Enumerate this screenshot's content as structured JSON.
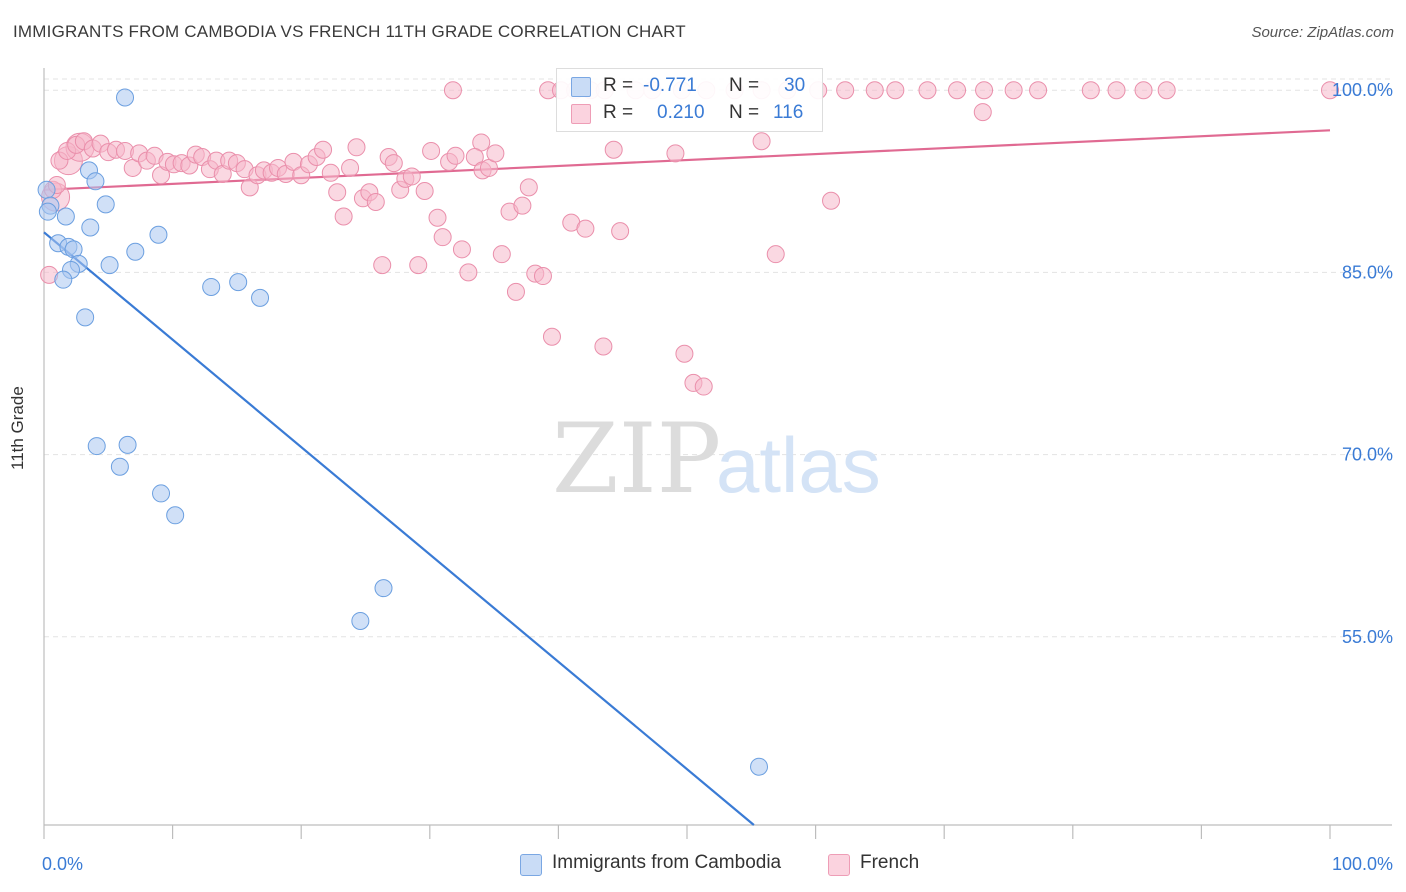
{
  "title": "IMMIGRANTS FROM CAMBODIA VS FRENCH 11TH GRADE CORRELATION CHART",
  "source": "Source: ZipAtlas.com",
  "watermark": {
    "zip": "ZIP",
    "atlas": "atlas"
  },
  "legend": {
    "r_label": "R =",
    "n_label": "N =",
    "rows": [
      {
        "r": "-0.771",
        "n": "30",
        "color": "#a9c7f0"
      },
      {
        "r": "0.210",
        "n": "116",
        "color": "#f6b8cb"
      }
    ]
  },
  "chart_data": {
    "type": "scatter",
    "title": "IMMIGRANTS FROM CAMBODIA VS FRENCH 11TH GRADE CORRELATION CHART",
    "ylabel": "11th Grade",
    "xlabel": "",
    "xlim": [
      0,
      100
    ],
    "ylim": [
      39.5,
      101.5
    ],
    "x_tick_labels": [
      "0.0%",
      "100.0%"
    ],
    "y_ticks": [
      {
        "value": 100,
        "label": "100.0%"
      },
      {
        "value": 85,
        "label": "85.0%"
      },
      {
        "value": 70,
        "label": "70.0%"
      },
      {
        "value": 55,
        "label": "55.0%"
      }
    ],
    "grid": "horizontal dashed",
    "series": [
      {
        "name": "Immigrants from Cambodia",
        "color": "#a9c7f0",
        "stroke": "#6b9fe0",
        "trend": {
          "x": [
            0,
            55.2
          ],
          "y": [
            88.3,
            39.5
          ],
          "color": "#3a7bd5"
        },
        "points": [
          [
            6.3,
            99.4
          ],
          [
            0.2,
            91.8
          ],
          [
            0.5,
            90.5
          ],
          [
            0.3,
            90.0
          ],
          [
            1.7,
            89.6
          ],
          [
            3.5,
            93.4
          ],
          [
            4.0,
            92.5
          ],
          [
            4.8,
            90.6
          ],
          [
            3.6,
            88.7
          ],
          [
            8.9,
            88.1
          ],
          [
            1.1,
            87.4
          ],
          [
            1.9,
            87.1
          ],
          [
            2.3,
            86.9
          ],
          [
            7.1,
            86.7
          ],
          [
            2.7,
            85.7
          ],
          [
            5.1,
            85.6
          ],
          [
            2.1,
            85.2
          ],
          [
            1.5,
            84.4
          ],
          [
            13.0,
            83.8
          ],
          [
            15.1,
            84.2
          ],
          [
            16.8,
            82.9
          ],
          [
            3.2,
            81.3
          ],
          [
            4.1,
            70.7
          ],
          [
            6.5,
            70.8
          ],
          [
            5.9,
            69.0
          ],
          [
            9.1,
            66.8
          ],
          [
            10.2,
            65.0
          ],
          [
            26.4,
            59.0
          ],
          [
            24.6,
            56.3
          ],
          [
            55.6,
            44.3
          ]
        ]
      },
      {
        "name": "French",
        "color": "#f6b8cb",
        "stroke": "#ea8fab",
        "trend": {
          "x": [
            0,
            100
          ],
          "y": [
            91.8,
            96.7
          ],
          "color": "#e06a92"
        },
        "points": [
          [
            31.8,
            100
          ],
          [
            39.2,
            100
          ],
          [
            40.2,
            100
          ],
          [
            41.3,
            100
          ],
          [
            42.5,
            100
          ],
          [
            43.6,
            100
          ],
          [
            46.0,
            100
          ],
          [
            47.3,
            100
          ],
          [
            49.6,
            100
          ],
          [
            51.5,
            100
          ],
          [
            53.7,
            100
          ],
          [
            55.8,
            100
          ],
          [
            57.8,
            100
          ],
          [
            60.2,
            100
          ],
          [
            62.3,
            100
          ],
          [
            64.6,
            100
          ],
          [
            66.2,
            100
          ],
          [
            68.7,
            100
          ],
          [
            71.0,
            100
          ],
          [
            73.1,
            100
          ],
          [
            75.4,
            100
          ],
          [
            77.3,
            100
          ],
          [
            81.4,
            100
          ],
          [
            83.4,
            100
          ],
          [
            85.5,
            100
          ],
          [
            87.3,
            100
          ],
          [
            100.0,
            100
          ],
          [
            73.0,
            98.2
          ],
          [
            55.8,
            95.8
          ],
          [
            34.0,
            95.7
          ],
          [
            0.7,
            91.8
          ],
          [
            1.2,
            94.2
          ],
          [
            1.8,
            95.0
          ],
          [
            2.5,
            95.5
          ],
          [
            3.1,
            95.8
          ],
          [
            3.8,
            95.2
          ],
          [
            4.4,
            95.6
          ],
          [
            5.0,
            94.9
          ],
          [
            5.6,
            95.1
          ],
          [
            6.3,
            95.0
          ],
          [
            6.9,
            93.6
          ],
          [
            7.4,
            94.8
          ],
          [
            8.0,
            94.2
          ],
          [
            8.6,
            94.6
          ],
          [
            9.1,
            93.0
          ],
          [
            9.6,
            94.1
          ],
          [
            10.1,
            93.9
          ],
          [
            10.7,
            94.0
          ],
          [
            11.3,
            93.8
          ],
          [
            11.8,
            94.7
          ],
          [
            12.3,
            94.5
          ],
          [
            12.9,
            93.5
          ],
          [
            13.4,
            94.2
          ],
          [
            13.9,
            93.1
          ],
          [
            14.4,
            94.2
          ],
          [
            15.0,
            94.0
          ],
          [
            15.6,
            93.5
          ],
          [
            16.0,
            92.0
          ],
          [
            16.6,
            93.0
          ],
          [
            17.1,
            93.4
          ],
          [
            17.7,
            93.2
          ],
          [
            18.2,
            93.6
          ],
          [
            18.8,
            93.1
          ],
          [
            19.4,
            94.1
          ],
          [
            20.0,
            93.0
          ],
          [
            20.6,
            93.9
          ],
          [
            21.2,
            94.5
          ],
          [
            21.7,
            95.1
          ],
          [
            22.3,
            93.2
          ],
          [
            22.8,
            91.6
          ],
          [
            23.3,
            89.6
          ],
          [
            23.8,
            93.6
          ],
          [
            24.3,
            95.3
          ],
          [
            24.8,
            91.1
          ],
          [
            25.3,
            91.6
          ],
          [
            25.8,
            90.8
          ],
          [
            26.3,
            85.6
          ],
          [
            26.8,
            94.5
          ],
          [
            27.2,
            94.0
          ],
          [
            27.7,
            91.8
          ],
          [
            28.1,
            92.7
          ],
          [
            28.6,
            92.9
          ],
          [
            29.1,
            85.6
          ],
          [
            29.6,
            91.7
          ],
          [
            30.1,
            95.0
          ],
          [
            30.6,
            89.5
          ],
          [
            31.0,
            87.9
          ],
          [
            31.5,
            94.1
          ],
          [
            32.0,
            94.6
          ],
          [
            32.5,
            86.9
          ],
          [
            33.0,
            85.0
          ],
          [
            33.5,
            94.5
          ],
          [
            34.1,
            93.4
          ],
          [
            34.6,
            93.6
          ],
          [
            35.1,
            94.8
          ],
          [
            35.6,
            86.5
          ],
          [
            36.2,
            90.0
          ],
          [
            36.7,
            83.4
          ],
          [
            37.2,
            90.5
          ],
          [
            37.7,
            92.0
          ],
          [
            38.2,
            84.9
          ],
          [
            38.8,
            84.7
          ],
          [
            39.5,
            79.7
          ],
          [
            41.0,
            89.1
          ],
          [
            42.1,
            88.6
          ],
          [
            43.5,
            78.9
          ],
          [
            44.3,
            95.1
          ],
          [
            44.8,
            88.4
          ],
          [
            49.1,
            94.8
          ],
          [
            49.8,
            78.3
          ],
          [
            50.5,
            75.9
          ],
          [
            51.3,
            75.6
          ],
          [
            56.9,
            86.5
          ],
          [
            61.2,
            90.9
          ],
          [
            1.0,
            92.2
          ],
          [
            0.4,
            84.8
          ]
        ],
        "big_points": [
          [
            1.9,
            94.2
          ],
          [
            0.9,
            91.2
          ],
          [
            2.8,
            95.3
          ]
        ]
      }
    ]
  }
}
